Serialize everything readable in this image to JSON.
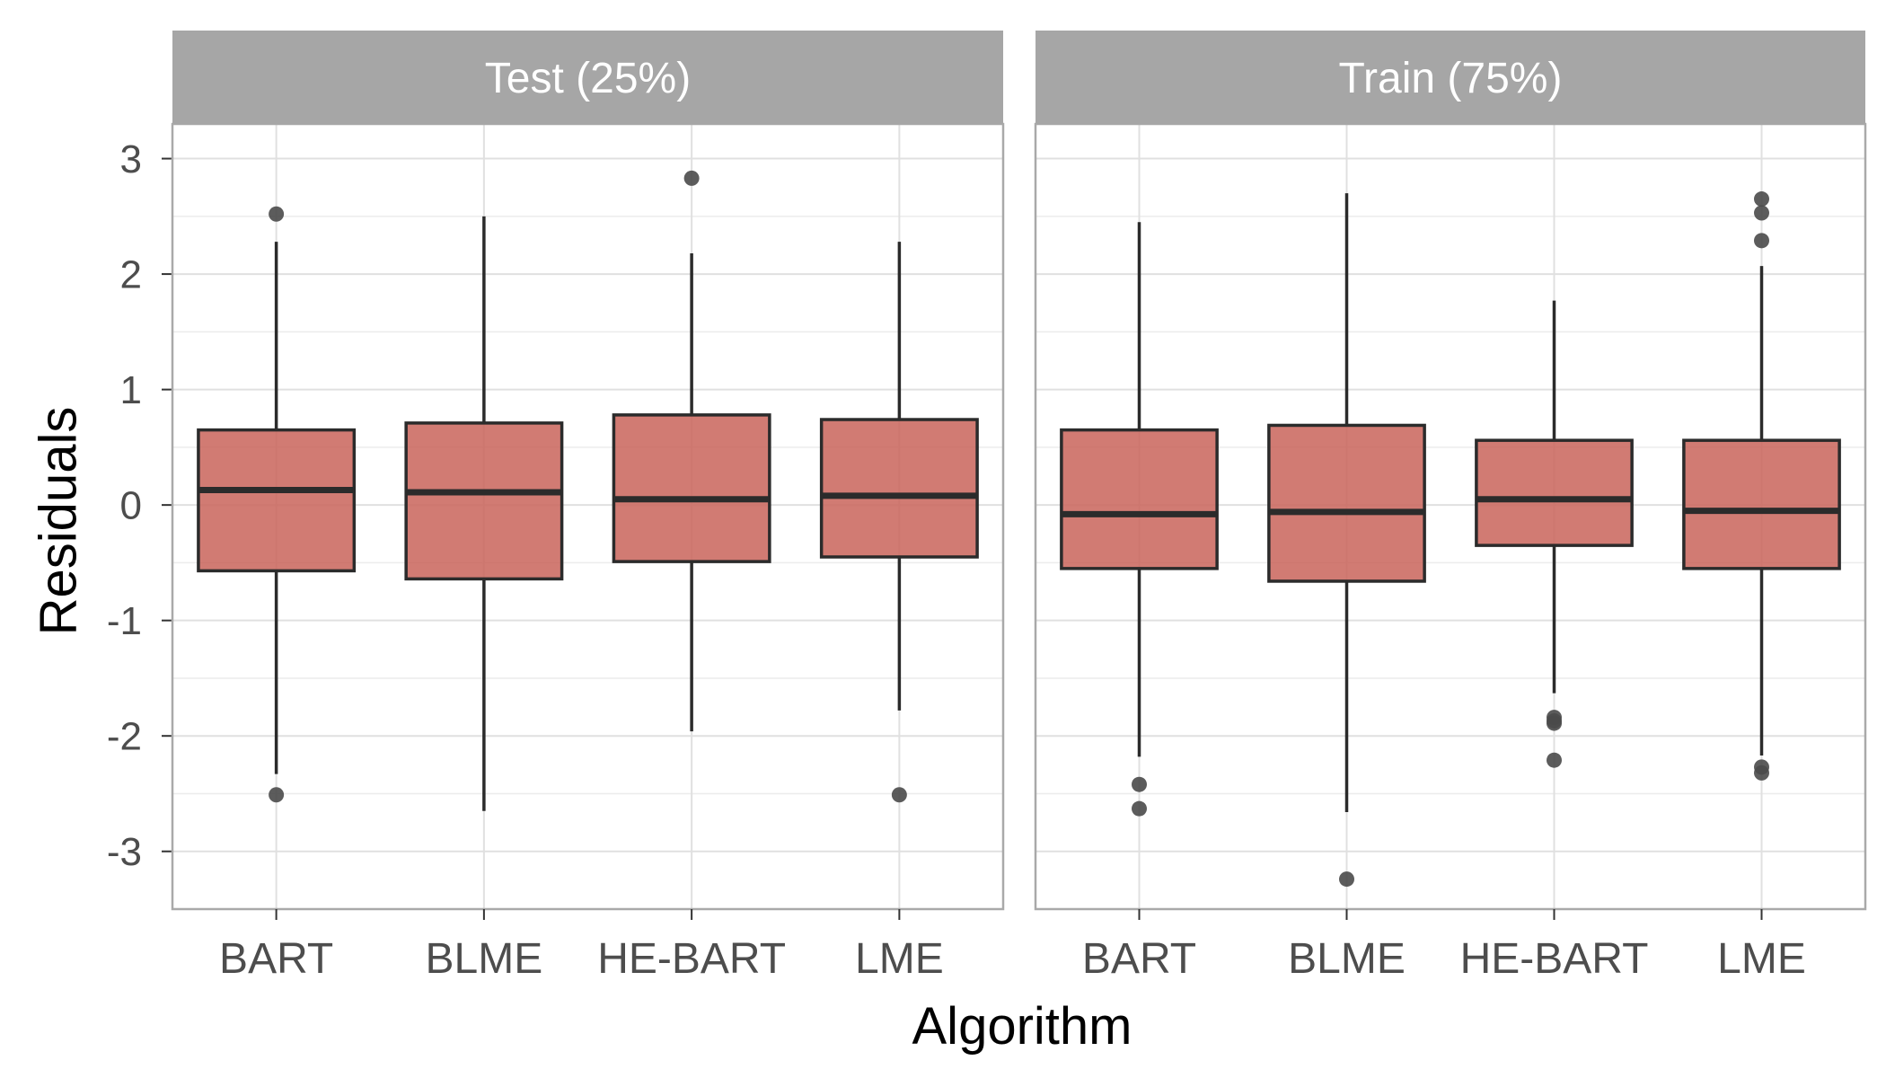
{
  "chart_data": {
    "type": "boxplot",
    "xlabel": "Algorithm",
    "ylabel": "Residuals",
    "ylim": [
      -3.5,
      3.3
    ],
    "yticks": [
      -3,
      -2,
      -1,
      0,
      1,
      2,
      3
    ],
    "grid": true,
    "categories": [
      "BART",
      "BLME",
      "HE-BART",
      "LME"
    ],
    "colors": {
      "box_fill": "#c9645a",
      "box_stroke": "#2b2b2b",
      "strip": "#a6a6a6",
      "grid": "#e0e0e0",
      "outlier": "#4a4a4a"
    },
    "panels": [
      {
        "title": "Test (25%)",
        "boxes": [
          {
            "category": "BART",
            "whisker_low": -2.33,
            "q1": -0.57,
            "median": 0.13,
            "q3": 0.65,
            "whisker_high": 2.28,
            "outliers": [
              2.52,
              -2.51
            ]
          },
          {
            "category": "BLME",
            "whisker_low": -2.65,
            "q1": -0.64,
            "median": 0.11,
            "q3": 0.71,
            "whisker_high": 2.5,
            "outliers": []
          },
          {
            "category": "HE-BART",
            "whisker_low": -1.96,
            "q1": -0.49,
            "median": 0.05,
            "q3": 0.78,
            "whisker_high": 2.18,
            "outliers": [
              2.83
            ]
          },
          {
            "category": "LME",
            "whisker_low": -1.78,
            "q1": -0.45,
            "median": 0.08,
            "q3": 0.74,
            "whisker_high": 2.28,
            "outliers": [
              -2.51
            ]
          }
        ]
      },
      {
        "title": "Train (75%)",
        "boxes": [
          {
            "category": "BART",
            "whisker_low": -2.18,
            "q1": -0.55,
            "median": -0.08,
            "q3": 0.65,
            "whisker_high": 2.45,
            "outliers": [
              -2.42,
              -2.63
            ]
          },
          {
            "category": "BLME",
            "whisker_low": -2.66,
            "q1": -0.66,
            "median": -0.06,
            "q3": 0.69,
            "whisker_high": 2.7,
            "outliers": [
              -3.24
            ]
          },
          {
            "category": "HE-BART",
            "whisker_low": -1.63,
            "q1": -0.35,
            "median": 0.05,
            "q3": 0.56,
            "whisker_high": 1.77,
            "outliers": [
              -1.84,
              -1.87,
              -1.89,
              -2.21
            ]
          },
          {
            "category": "LME",
            "whisker_low": -2.17,
            "q1": -0.55,
            "median": -0.05,
            "q3": 0.56,
            "whisker_high": 2.07,
            "outliers": [
              2.65,
              2.53,
              2.29,
              -2.27,
              -2.32
            ]
          }
        ]
      }
    ]
  }
}
